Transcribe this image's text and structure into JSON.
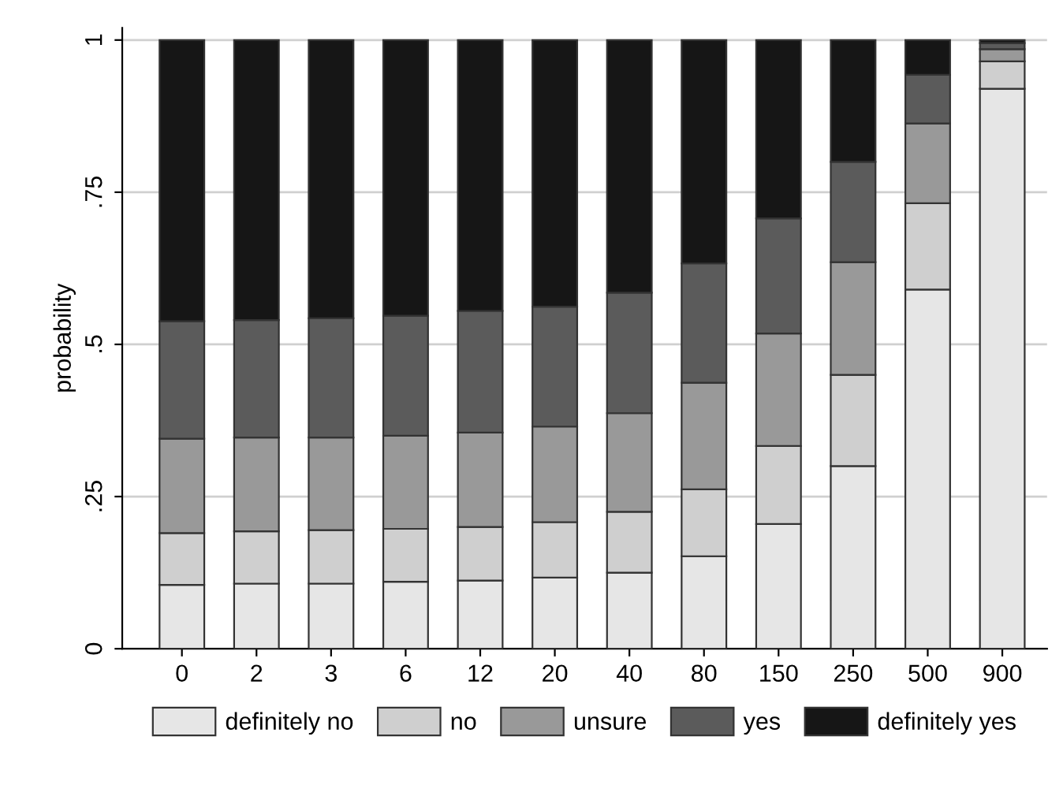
{
  "chart_data": {
    "type": "bar",
    "stacked": true,
    "ylabel": "probability",
    "categories": [
      "0",
      "2",
      "3",
      "6",
      "12",
      "20",
      "40",
      "80",
      "150",
      "250",
      "500",
      "900"
    ],
    "series": [
      {
        "name": "definitely no",
        "color": "#e6e6e6",
        "values": [
          0.105,
          0.107,
          0.107,
          0.11,
          0.112,
          0.117,
          0.125,
          0.152,
          0.205,
          0.3,
          0.59,
          0.92
        ]
      },
      {
        "name": "no",
        "color": "#cfcfcf",
        "values": [
          0.085,
          0.086,
          0.088,
          0.087,
          0.088,
          0.091,
          0.1,
          0.11,
          0.128,
          0.15,
          0.142,
          0.045
        ]
      },
      {
        "name": "unsure",
        "color": "#999999",
        "values": [
          0.155,
          0.154,
          0.152,
          0.153,
          0.155,
          0.157,
          0.162,
          0.175,
          0.185,
          0.185,
          0.131,
          0.02
        ]
      },
      {
        "name": "yes",
        "color": "#5b5b5b",
        "values": [
          0.193,
          0.193,
          0.196,
          0.197,
          0.2,
          0.197,
          0.198,
          0.196,
          0.189,
          0.165,
          0.08,
          0.01
        ]
      },
      {
        "name": "definitely yes",
        "color": "#161616",
        "values": [
          0.462,
          0.46,
          0.457,
          0.453,
          0.445,
          0.438,
          0.415,
          0.367,
          0.293,
          0.2,
          0.057,
          0.005
        ]
      }
    ],
    "ylim": [
      0,
      1.02
    ],
    "yticks": [
      0,
      {
        "value": 0.25,
        "label": ".25"
      },
      {
        "value": 0.5,
        "label": ".5"
      },
      {
        "value": 0.75,
        "label": ".75"
      },
      1
    ],
    "grid": "y",
    "legend": "bottom"
  }
}
